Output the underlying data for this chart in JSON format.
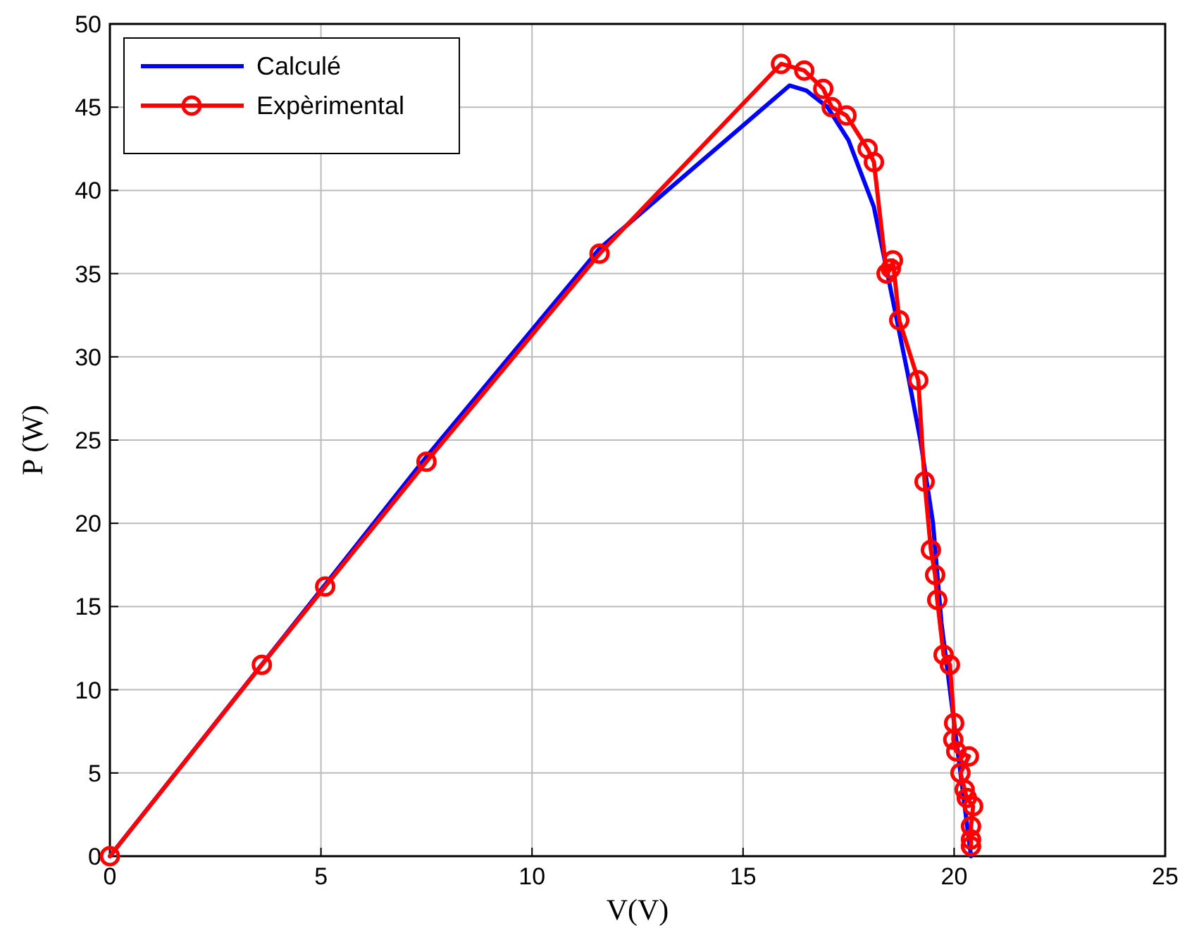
{
  "chart_data": {
    "type": "line",
    "xlabel": "V(V)",
    "ylabel": "P (W)",
    "xlim": [
      0,
      25
    ],
    "ylim": [
      0,
      50
    ],
    "xticks": [
      0,
      5,
      10,
      15,
      20,
      25
    ],
    "yticks": [
      0,
      5,
      10,
      15,
      20,
      25,
      30,
      35,
      40,
      45,
      50
    ],
    "grid": true,
    "legend": "top left",
    "series": [
      {
        "name": "Calculé",
        "color": "#0000ff",
        "marker": "none",
        "x": [
          0,
          5,
          7.5,
          11.6,
          16.1,
          16.5,
          17,
          17.5,
          18.1,
          18.5,
          18.9,
          19.2,
          19.5,
          19.7,
          20,
          20.2,
          20.4
        ],
        "values": [
          0,
          16,
          24,
          36.5,
          46.3,
          46,
          45,
          43,
          39,
          34,
          29,
          25,
          20,
          14,
          8,
          4,
          0
        ]
      },
      {
        "name": "Expèrimental",
        "color": "#ff0000",
        "marker": "circle",
        "x": [
          0,
          3.6,
          5.1,
          7.5,
          11.6,
          15.9,
          16.45,
          16.9,
          17.1,
          17.45,
          17.95,
          18.1,
          18.4,
          18.5,
          18.55,
          18.7,
          19.15,
          19.3,
          19.45,
          19.55,
          19.6,
          19.75,
          19.9,
          20,
          19.98,
          20.05,
          20.35,
          20.15,
          20.25,
          20.3,
          20.45,
          20.4,
          20.4,
          20.4
        ],
        "values": [
          0,
          11.5,
          16.2,
          23.7,
          36.2,
          47.6,
          47.2,
          46.1,
          45,
          44.5,
          42.5,
          41.7,
          35,
          35.3,
          35.8,
          32.2,
          28.6,
          22.5,
          18.4,
          16.9,
          15.4,
          12.1,
          11.5,
          8,
          7,
          6.3,
          6,
          5,
          4,
          3.5,
          3,
          1.8,
          1,
          0.6
        ]
      }
    ]
  }
}
